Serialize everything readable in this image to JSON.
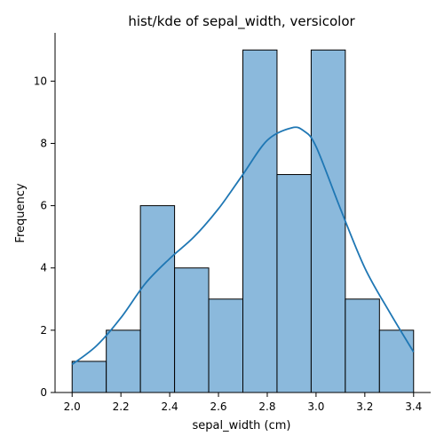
{
  "chart_data": {
    "type": "bar",
    "title": "hist/kde of sepal_width, versicolor",
    "xlabel": "sepal_width (cm)",
    "ylabel": "Frequency",
    "bin_edges": [
      2.0,
      2.14,
      2.28,
      2.42,
      2.56,
      2.7,
      2.84,
      2.98,
      3.12,
      3.26,
      3.4
    ],
    "counts": [
      1,
      2,
      6,
      4,
      3,
      11,
      7,
      11,
      3,
      2
    ],
    "kde": {
      "x": [
        2.0,
        2.1,
        2.2,
        2.3,
        2.4,
        2.5,
        2.6,
        2.7,
        2.8,
        2.9,
        2.95,
        3.0,
        3.1,
        3.2,
        3.3,
        3.4
      ],
      "y": [
        0.9,
        1.5,
        2.4,
        3.5,
        4.3,
        5.0,
        5.9,
        7.0,
        8.1,
        8.5,
        8.4,
        7.9,
        5.9,
        4.0,
        2.6,
        1.3
      ]
    },
    "xlim": [
      1.93,
      3.47
    ],
    "ylim": [
      0,
      11.55
    ],
    "xticks": [
      2.0,
      2.2,
      2.4,
      2.6,
      2.8,
      3.0,
      3.2,
      3.4
    ],
    "xtick_labels": [
      "2.0",
      "2.2",
      "2.4",
      "2.6",
      "2.8",
      "3.0",
      "3.2",
      "3.4"
    ],
    "yticks": [
      0,
      2,
      4,
      6,
      8,
      10
    ],
    "ytick_labels": [
      "0",
      "2",
      "4",
      "6",
      "8",
      "10"
    ],
    "grid": false,
    "bar_color": "#8bb9dc",
    "bar_edge_color": "#000000",
    "kde_color": "#1f77b4"
  }
}
